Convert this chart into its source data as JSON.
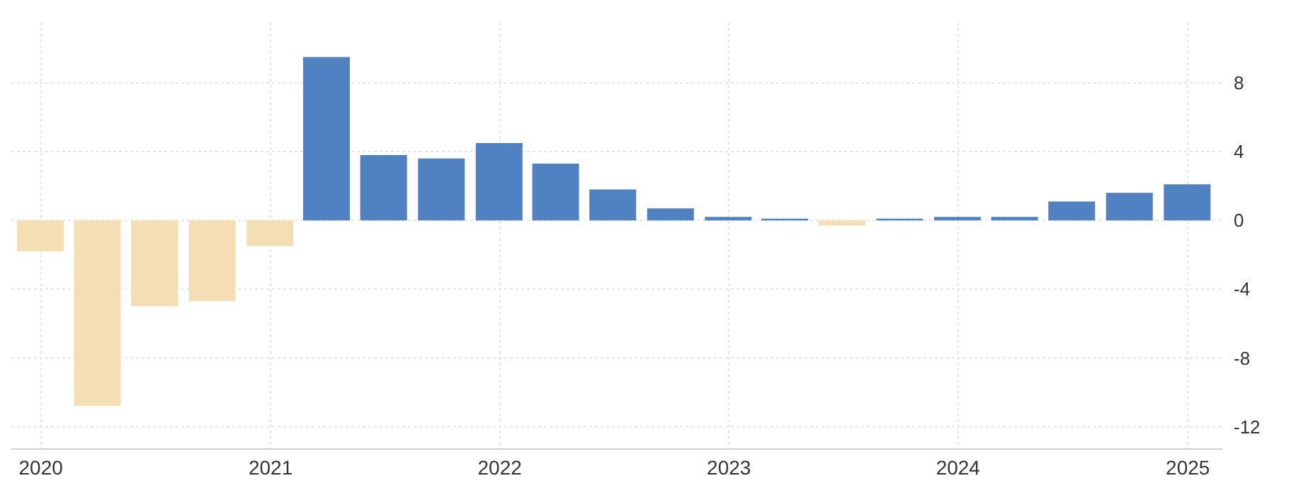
{
  "chart_data": {
    "type": "bar",
    "x": [
      "2020-01-01",
      "2020-04-01",
      "2020-07-01",
      "2020-10-01",
      "2021-01-01",
      "2021-04-01",
      "2021-07-01",
      "2021-10-01",
      "2022-01-01",
      "2022-04-01",
      "2022-07-01",
      "2022-10-01",
      "2023-01-01",
      "2023-04-01",
      "2023-07-01",
      "2023-10-01",
      "2024-01-01",
      "2024-04-01",
      "2024-07-01",
      "2024-10-01",
      "2025-01-01"
    ],
    "values": [
      -1.8,
      -10.8,
      -5.0,
      -4.7,
      -1.5,
      9.5,
      3.8,
      3.6,
      4.5,
      3.3,
      1.8,
      0.7,
      0.2,
      0.1,
      -0.3,
      0.1,
      0.2,
      0.2,
      1.1,
      1.6,
      2.1
    ],
    "colors": [
      "#f4deb3",
      "#f4deb3",
      "#f4deb3",
      "#f4deb3",
      "#f4deb3",
      "#5081c0",
      "#5081c0",
      "#5081c0",
      "#5081c0",
      "#5081c0",
      "#5081c0",
      "#5081c0",
      "#5081c0",
      "#5081c0",
      "#f4deb3",
      "#5081c0",
      "#5081c0",
      "#5081c0",
      "#5081c0",
      "#5081c0",
      "#5081c0"
    ],
    "xlim": [
      "2019-11-15",
      "2025-02-25"
    ],
    "xticks": [
      {
        "value": "2020-01-01",
        "label": "2020"
      },
      {
        "value": "2021-01-01",
        "label": "2021"
      },
      {
        "value": "2022-01-01",
        "label": "2022"
      },
      {
        "value": "2023-01-01",
        "label": "2023"
      },
      {
        "value": "2024-01-01",
        "label": "2024"
      },
      {
        "value": "2025-01-01",
        "label": "2025"
      }
    ],
    "ylim": [
      -13.3,
      11.5
    ],
    "yticks": [
      -12,
      -8,
      -4,
      0,
      4,
      8
    ],
    "grid": true
  }
}
